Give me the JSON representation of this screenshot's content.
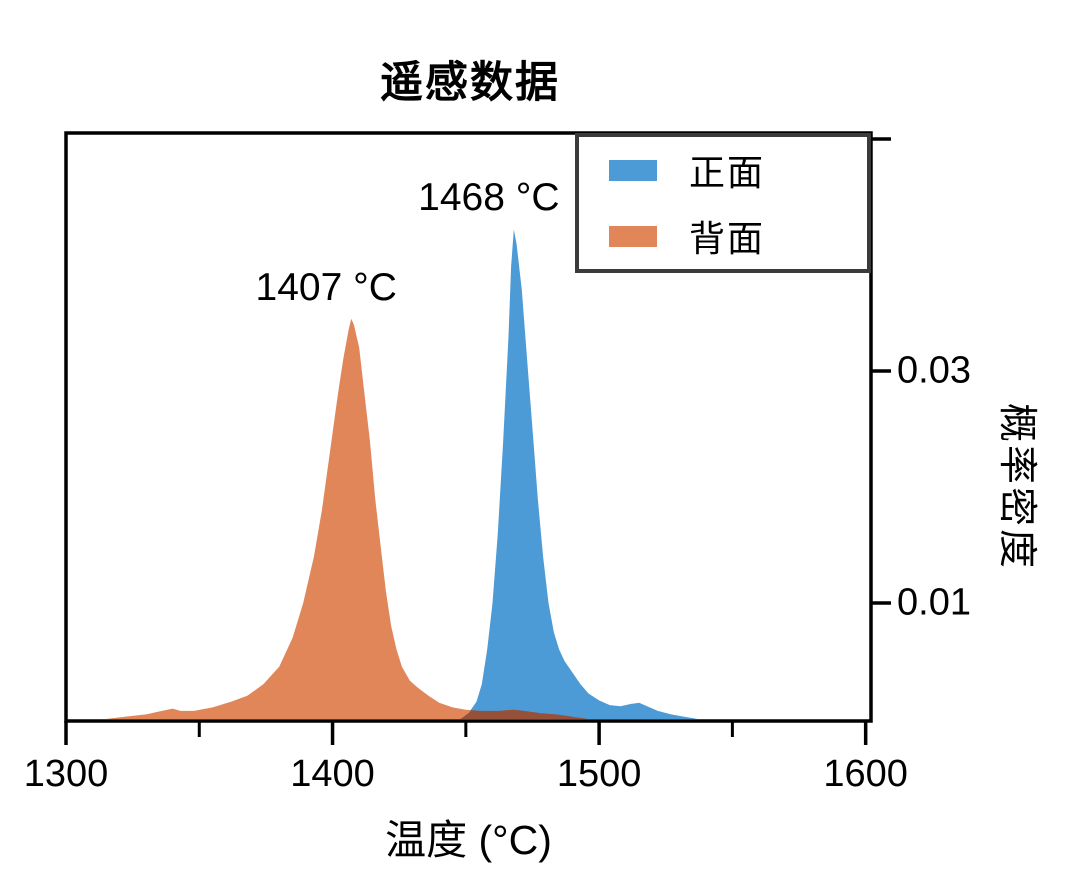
{
  "chart_data": {
    "type": "area",
    "subtype": "kde-density",
    "title": "遥感数据",
    "xlabel": "温度 (°C)",
    "ylabel": "概率密度",
    "xlim": [
      1300,
      1602
    ],
    "ylim": [
      0,
      0.0505
    ],
    "grid": false,
    "legend_position": "upper right inside",
    "x_ticks_major": [
      {
        "value": 1300,
        "label": "1300"
      },
      {
        "value": 1400,
        "label": "1400"
      },
      {
        "value": 1500,
        "label": "1500"
      },
      {
        "value": 1600,
        "label": "1600"
      }
    ],
    "x_ticks_minor": [
      1350,
      1450,
      1550
    ],
    "y_ticks": [
      {
        "value": 0.01,
        "label": "0.01"
      },
      {
        "value": 0.03,
        "label": "0.03"
      },
      {
        "value": 0.05,
        "label": ""
      }
    ],
    "series": [
      {
        "name": "正面",
        "color": "#4D9BD6",
        "peak_label": "1468 °C",
        "peak_temp": 1468,
        "peak_density": 0.0422,
        "points": [
          [
            1448,
            0
          ],
          [
            1451,
            0.0005
          ],
          [
            1454,
            0.0015
          ],
          [
            1456,
            0.003
          ],
          [
            1458,
            0.006
          ],
          [
            1460,
            0.01
          ],
          [
            1462,
            0.016
          ],
          [
            1464,
            0.024
          ],
          [
            1466,
            0.033
          ],
          [
            1467,
            0.039
          ],
          [
            1468,
            0.0422
          ],
          [
            1469,
            0.041
          ],
          [
            1471,
            0.037
          ],
          [
            1473,
            0.031
          ],
          [
            1475,
            0.025
          ],
          [
            1477,
            0.019
          ],
          [
            1479,
            0.014
          ],
          [
            1481,
            0.01
          ],
          [
            1483,
            0.0075
          ],
          [
            1485,
            0.006
          ],
          [
            1487,
            0.005
          ],
          [
            1490,
            0.004
          ],
          [
            1493,
            0.003
          ],
          [
            1496,
            0.0022
          ],
          [
            1500,
            0.0016
          ],
          [
            1504,
            0.0012
          ],
          [
            1508,
            0.0011
          ],
          [
            1512,
            0.0013
          ],
          [
            1515,
            0.0014
          ],
          [
            1518,
            0.0011
          ],
          [
            1522,
            0.0007
          ],
          [
            1527,
            0.0004
          ],
          [
            1532,
            0.0002
          ],
          [
            1537,
            0
          ]
        ]
      },
      {
        "name": "背面",
        "color": "#E18659",
        "peak_label": "1407 °C",
        "peak_temp": 1407,
        "peak_density": 0.0345,
        "points": [
          [
            1315,
            0
          ],
          [
            1322,
            0.0002
          ],
          [
            1330,
            0.0004
          ],
          [
            1336,
            0.0007
          ],
          [
            1340,
            0.0009
          ],
          [
            1343,
            0.0007
          ],
          [
            1348,
            0.0007
          ],
          [
            1355,
            0.001
          ],
          [
            1362,
            0.0015
          ],
          [
            1368,
            0.002
          ],
          [
            1374,
            0.003
          ],
          [
            1380,
            0.0045
          ],
          [
            1385,
            0.007
          ],
          [
            1389,
            0.01
          ],
          [
            1393,
            0.014
          ],
          [
            1396,
            0.018
          ],
          [
            1399,
            0.023
          ],
          [
            1402,
            0.028
          ],
          [
            1404,
            0.031
          ],
          [
            1406,
            0.0335
          ],
          [
            1407,
            0.0345
          ],
          [
            1408,
            0.034
          ],
          [
            1410,
            0.032
          ],
          [
            1412,
            0.028
          ],
          [
            1414,
            0.024
          ],
          [
            1416,
            0.019
          ],
          [
            1418,
            0.015
          ],
          [
            1420,
            0.011
          ],
          [
            1422,
            0.008
          ],
          [
            1424,
            0.006
          ],
          [
            1426,
            0.0045
          ],
          [
            1429,
            0.0033
          ],
          [
            1432,
            0.0027
          ],
          [
            1436,
            0.002
          ],
          [
            1440,
            0.0014
          ],
          [
            1445,
            0.001
          ],
          [
            1450,
            0.0008
          ],
          [
            1456,
            0.0007
          ],
          [
            1462,
            0.0007
          ],
          [
            1468,
            0.0008
          ],
          [
            1472,
            0.0007
          ],
          [
            1478,
            0.0005
          ],
          [
            1484,
            0.0004
          ],
          [
            1490,
            0.0002
          ],
          [
            1496,
            0
          ]
        ]
      }
    ],
    "overlap_color": "#96513A",
    "axis_color": "#000000",
    "legend_border_color": "#3b3b3b"
  }
}
